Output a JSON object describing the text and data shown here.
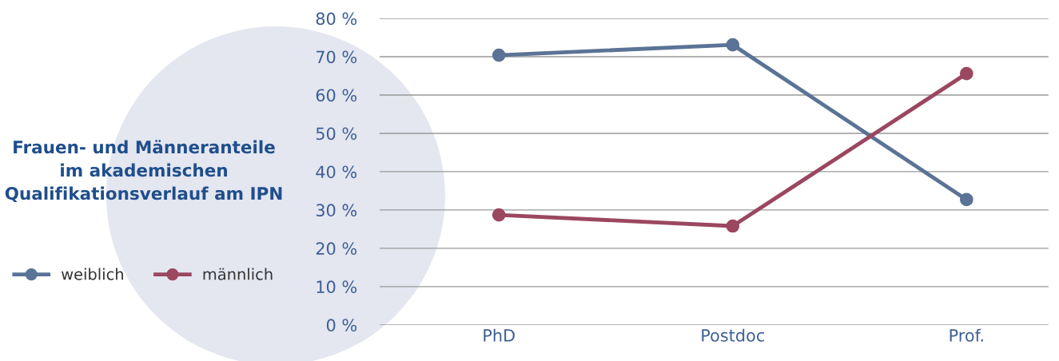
{
  "chart_data": {
    "type": "line",
    "title": "Frauen- und Männeranteile\nim akademischen\nQualifikationsverlauf am IPN",
    "categories": [
      "PhD",
      "Postdoc",
      "Prof."
    ],
    "series": [
      {
        "name": "weiblich",
        "color": "#5a7396",
        "values": [
          70.4,
          73.1,
          32.7
        ]
      },
      {
        "name": "männlich",
        "color": "#9b4760",
        "values": [
          28.7,
          25.8,
          65.6
        ]
      }
    ],
    "ylim": [
      0,
      80
    ],
    "yticks": [
      {
        "value": 0,
        "label": "0 %"
      },
      {
        "value": 10,
        "label": "10 %"
      },
      {
        "value": 20,
        "label": "20 %"
      },
      {
        "value": 30,
        "label": "30 %"
      },
      {
        "value": 40,
        "label": "40 %"
      },
      {
        "value": 50,
        "label": "50 %"
      },
      {
        "value": 60,
        "label": "60 %"
      },
      {
        "value": 70,
        "label": "70 %"
      },
      {
        "value": 80,
        "label": "80 %"
      }
    ],
    "grid": "y",
    "legend": "left",
    "marker": "circle",
    "line_style": "solid"
  }
}
